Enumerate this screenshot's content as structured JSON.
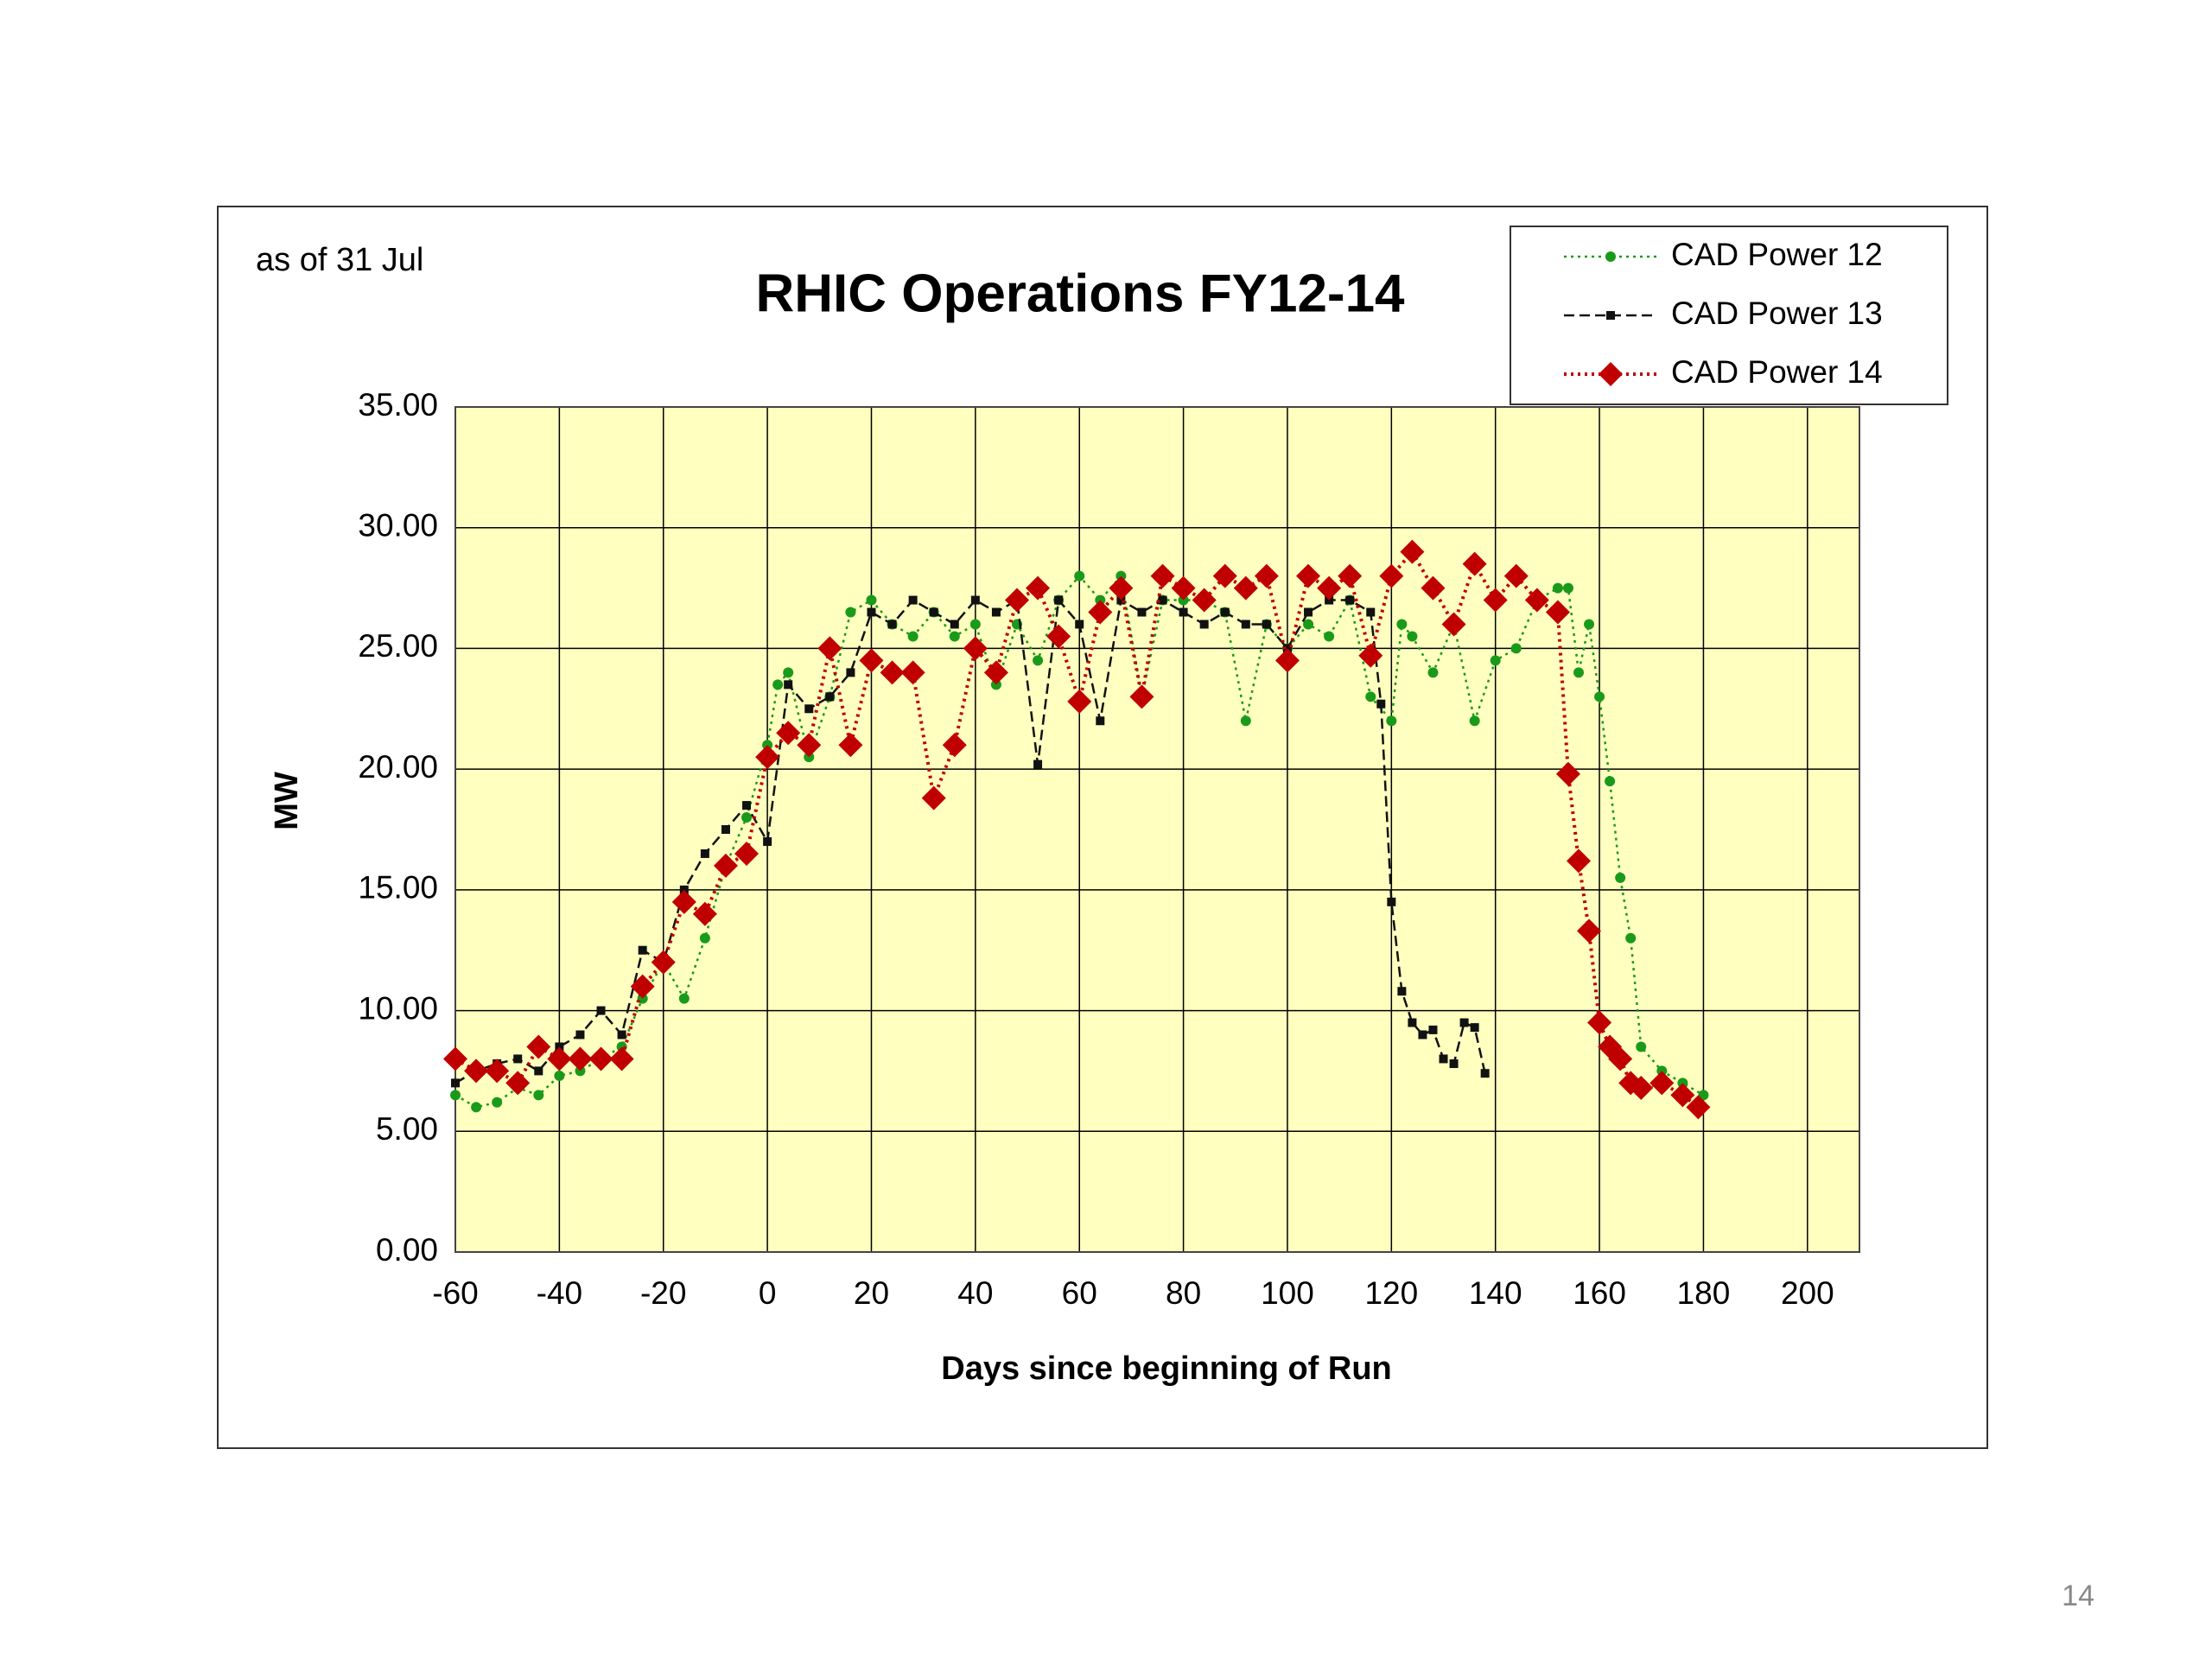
{
  "chart_data": {
    "type": "line",
    "title": "RHIC Operations  FY12-14",
    "annotation": "as of 31 Jul",
    "x_label": "Days since beginning of Run",
    "y_label": "MW",
    "xlim": [
      -60,
      210
    ],
    "xticks": [
      -60,
      -40,
      -20,
      0,
      20,
      40,
      60,
      80,
      100,
      120,
      140,
      160,
      180,
      200
    ],
    "ylim": [
      0,
      35
    ],
    "yticks": [
      {
        "value": 0,
        "label": "0.00"
      },
      {
        "value": 5,
        "label": "5.00"
      },
      {
        "value": 10,
        "label": "10.00"
      },
      {
        "value": 15,
        "label": "15.00"
      },
      {
        "value": 20,
        "label": "20.00"
      },
      {
        "value": 25,
        "label": "25.00"
      },
      {
        "value": 30,
        "label": "30.00"
      },
      {
        "value": 35,
        "label": "35.00"
      }
    ],
    "grid": true,
    "plot_background": "#ffffc0",
    "legend": "upper right",
    "series": [
      {
        "name": "CAD Power 12",
        "color": "#1a9a1a",
        "marker": "circle",
        "line_style": "dotted",
        "x": [
          -60,
          -56,
          -52,
          -48,
          -44,
          -40,
          -36,
          -32,
          -28,
          -24,
          -20,
          -16,
          -12,
          -8,
          -4,
          0,
          2,
          4,
          8,
          12,
          16,
          20,
          24,
          28,
          32,
          36,
          40,
          44,
          48,
          52,
          56,
          60,
          64,
          68,
          72,
          76,
          80,
          84,
          88,
          92,
          96,
          100,
          104,
          108,
          112,
          116,
          120,
          122,
          124,
          128,
          132,
          136,
          140,
          144,
          148,
          152,
          154,
          156,
          158,
          160,
          162,
          164,
          166,
          168,
          172,
          176,
          180
        ],
        "values": [
          6.5,
          6.0,
          6.2,
          6.8,
          6.5,
          7.3,
          7.5,
          8.0,
          8.5,
          10.5,
          12,
          10.5,
          13,
          16,
          18,
          21,
          23.5,
          24,
          20.5,
          23,
          26.5,
          27,
          26,
          25.5,
          26.5,
          25.5,
          26,
          23.5,
          26,
          24.5,
          27,
          28,
          27,
          28,
          23,
          27,
          27,
          27,
          26.5,
          22,
          26,
          25,
          26,
          25.5,
          27,
          23,
          22,
          26,
          25.5,
          24,
          26,
          22,
          24.5,
          25,
          27,
          27.5,
          27.5,
          24,
          26,
          23,
          19.5,
          15.5,
          13,
          8.5,
          7.5,
          7,
          6.5
        ]
      },
      {
        "name": "CAD Power 13",
        "color": "#111111",
        "marker": "square",
        "line_style": "dashed",
        "x": [
          -60,
          -56,
          -52,
          -48,
          -44,
          -40,
          -36,
          -32,
          -28,
          -24,
          -20,
          -16,
          -12,
          -8,
          -4,
          0,
          4,
          8,
          12,
          16,
          20,
          24,
          28,
          32,
          36,
          40,
          44,
          48,
          52,
          56,
          60,
          64,
          68,
          72,
          76,
          80,
          84,
          88,
          92,
          96,
          100,
          104,
          108,
          112,
          116,
          118,
          120,
          122,
          124,
          126,
          128,
          130,
          132,
          134,
          136,
          138
        ],
        "values": [
          7,
          7.5,
          7.8,
          8,
          7.5,
          8.5,
          9,
          10,
          9,
          12.5,
          12,
          15,
          16.5,
          17.5,
          18.5,
          17,
          23.5,
          22.5,
          23,
          24,
          26.5,
          26,
          27,
          26.5,
          26,
          27,
          26.5,
          27,
          20.2,
          27,
          26,
          22,
          27,
          26.5,
          27,
          26.5,
          26,
          26.5,
          26,
          26,
          25,
          26.5,
          27,
          27,
          26.5,
          22.7,
          14.5,
          10.8,
          9.5,
          9,
          9.2,
          8,
          7.8,
          9.5,
          9.3,
          7.4
        ]
      },
      {
        "name": "CAD Power 14",
        "color": "#c00000",
        "marker": "diamond",
        "line_style": "dotted",
        "x": [
          -60,
          -56,
          -52,
          -48,
          -44,
          -40,
          -36,
          -32,
          -28,
          -24,
          -20,
          -16,
          -12,
          -8,
          -4,
          0,
          4,
          8,
          12,
          16,
          20,
          24,
          28,
          32,
          36,
          40,
          44,
          48,
          52,
          56,
          60,
          64,
          68,
          72,
          76,
          80,
          84,
          88,
          92,
          96,
          100,
          104,
          108,
          112,
          116,
          120,
          124,
          128,
          132,
          136,
          140,
          144,
          148,
          152,
          154,
          156,
          158,
          160,
          162,
          164,
          166,
          168,
          172,
          176,
          179
        ],
        "values": [
          8,
          7.5,
          7.5,
          7,
          8.5,
          8,
          8,
          8,
          8,
          11,
          12,
          14.5,
          14,
          16,
          16.5,
          20.5,
          21.5,
          21,
          25,
          21,
          24.5,
          24,
          24,
          18.8,
          21,
          25,
          24,
          27,
          27.5,
          25.5,
          22.8,
          26.5,
          27.5,
          23,
          28,
          27.5,
          27,
          28,
          27.5,
          28,
          24.5,
          28,
          27.5,
          28,
          24.7,
          28,
          29,
          27.5,
          26,
          28.5,
          27,
          28,
          27,
          26.5,
          19.8,
          16.2,
          13.3,
          9.5,
          8.5,
          8,
          7,
          6.8,
          7,
          6.5,
          6
        ]
      }
    ]
  },
  "page_number": "14"
}
